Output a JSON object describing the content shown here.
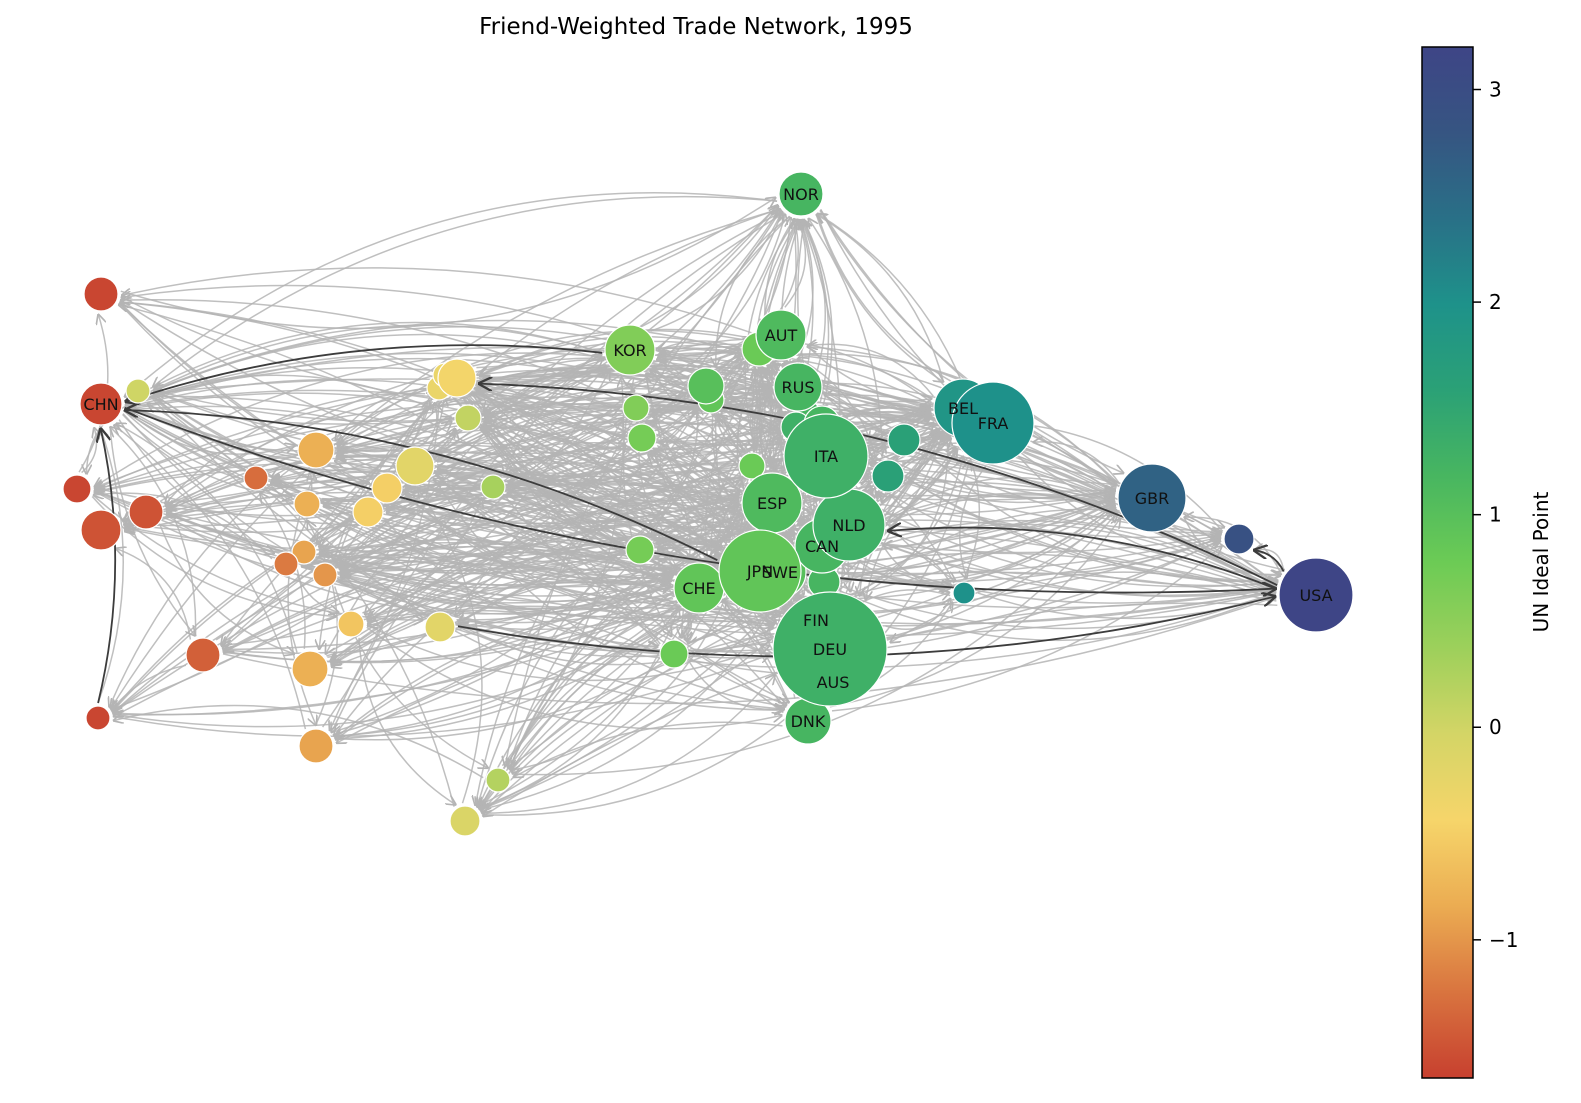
{
  "title": "Friend-Weighted Trade Network, 1995",
  "colorbar": {
    "label": "UN Ideal Point",
    "min": -1.65,
    "max": 3.2,
    "ticks": [
      {
        "value": 3,
        "label": "3"
      },
      {
        "value": 2,
        "label": "2"
      },
      {
        "value": 1,
        "label": "1"
      },
      {
        "value": 0,
        "label": "0"
      },
      {
        "value": -1,
        "label": "−1"
      }
    ],
    "stops": [
      "#c7402f",
      "#d9743f",
      "#ebac52",
      "#f6d56a",
      "#d4d566",
      "#9dd05b",
      "#6ccb55",
      "#48b660",
      "#2ba176",
      "#1e928a",
      "#297087",
      "#365582",
      "#3e4586"
    ]
  },
  "edge_colors": {
    "regular": "#b4b4b4",
    "highlight": "#3c3c3c"
  },
  "nodes": [
    {
      "id": "USA",
      "label": "USA",
      "ideal": 3.2,
      "size": 37
    },
    {
      "id": "GBR",
      "label": "GBR",
      "ideal": 2.6,
      "size": 34
    },
    {
      "id": "FRA",
      "label": "FRA",
      "ideal": 2.0,
      "size": 41
    },
    {
      "id": "BEL",
      "label": "BEL",
      "ideal": 1.9,
      "size": 29
    },
    {
      "id": "DEU",
      "label": "DEU",
      "ideal": 1.3,
      "size": 57
    },
    {
      "id": "AUS",
      "label": "AUS",
      "ideal": 1.3,
      "size": 0
    },
    {
      "id": "ITA",
      "label": "ITA",
      "ideal": 1.3,
      "size": 42
    },
    {
      "id": "NLD",
      "label": "NLD",
      "ideal": 1.3,
      "size": 36
    },
    {
      "id": "CAN",
      "label": "CAN",
      "ideal": 1.2,
      "size": 27
    },
    {
      "id": "SWE",
      "label": "SWE",
      "ideal": 1.0,
      "size": 26
    },
    {
      "id": "JPN",
      "label": "JPN",
      "ideal": 0.9,
      "size": 41
    },
    {
      "id": "FIN",
      "label": "FIN",
      "ideal": 1.2,
      "size": 22
    },
    {
      "id": "DNK",
      "label": "DNK",
      "ideal": 1.2,
      "size": 23
    },
    {
      "id": "ESP",
      "label": "ESP",
      "ideal": 1.1,
      "size": 30
    },
    {
      "id": "RUS",
      "label": "RUS",
      "ideal": 1.2,
      "size": 24
    },
    {
      "id": "AUT",
      "label": "AUT",
      "ideal": 1.1,
      "size": 25
    },
    {
      "id": "NOR",
      "label": "NOR",
      "ideal": 1.2,
      "size": 22
    },
    {
      "id": "CHE",
      "label": "CHE",
      "ideal": 0.9,
      "size": 25
    },
    {
      "id": "KOR",
      "label": "KOR",
      "ideal": 0.6,
      "size": 25
    },
    {
      "id": "CHN",
      "label": "CHN",
      "ideal": -1.6,
      "size": 21
    },
    {
      "id": "n1",
      "label": "",
      "ideal": 2.9,
      "size": 15
    },
    {
      "id": "n2",
      "label": "",
      "ideal": 2.0,
      "size": 11
    },
    {
      "id": "n3",
      "label": "",
      "ideal": 1.6,
      "size": 16
    },
    {
      "id": "n4",
      "label": "",
      "ideal": 1.6,
      "size": 16
    },
    {
      "id": "n5",
      "label": "",
      "ideal": 1.2,
      "size": 18
    },
    {
      "id": "n6",
      "label": "",
      "ideal": 1.2,
      "size": 16
    },
    {
      "id": "n7",
      "label": "",
      "ideal": 1.3,
      "size": 15
    },
    {
      "id": "n8",
      "label": "",
      "ideal": 1.2,
      "size": 12
    },
    {
      "id": "n9",
      "label": "",
      "ideal": 1.1,
      "size": 13
    },
    {
      "id": "n10",
      "label": "",
      "ideal": 1.1,
      "size": 14
    },
    {
      "id": "n11",
      "label": "",
      "ideal": 1.0,
      "size": 18
    },
    {
      "id": "n12",
      "label": "",
      "ideal": 1.0,
      "size": 17
    },
    {
      "id": "n13",
      "label": "",
      "ideal": 0.9,
      "size": 13
    },
    {
      "id": "n14",
      "label": "",
      "ideal": 0.8,
      "size": 13
    },
    {
      "id": "n15",
      "label": "",
      "ideal": 0.8,
      "size": 17
    },
    {
      "id": "n16",
      "label": "",
      "ideal": 0.7,
      "size": 14
    },
    {
      "id": "n17",
      "label": "",
      "ideal": 0.6,
      "size": 13
    },
    {
      "id": "n18",
      "label": "",
      "ideal": 0.7,
      "size": 14
    },
    {
      "id": "n19",
      "label": "",
      "ideal": 0.8,
      "size": 14
    },
    {
      "id": "n20",
      "label": "",
      "ideal": 0.3,
      "size": 12
    },
    {
      "id": "n21",
      "label": "",
      "ideal": 0.1,
      "size": 13
    },
    {
      "id": "n22",
      "label": "",
      "ideal": 0.2,
      "size": 12
    },
    {
      "id": "n23",
      "label": "",
      "ideal": -0.2,
      "size": 19
    },
    {
      "id": "n24",
      "label": "",
      "ideal": -0.3,
      "size": 12
    },
    {
      "id": "n25",
      "label": "",
      "ideal": -0.3,
      "size": 12
    },
    {
      "id": "n26",
      "label": "",
      "ideal": -0.4,
      "size": 19
    },
    {
      "id": "n27",
      "label": "",
      "ideal": -0.5,
      "size": 15
    },
    {
      "id": "n28",
      "label": "",
      "ideal": -0.5,
      "size": 15
    },
    {
      "id": "n29",
      "label": "",
      "ideal": -0.2,
      "size": 15
    },
    {
      "id": "n30",
      "label": "",
      "ideal": -0.6,
      "size": 13
    },
    {
      "id": "n31",
      "label": "",
      "ideal": -0.8,
      "size": 18
    },
    {
      "id": "n32",
      "label": "",
      "ideal": -0.8,
      "size": 13
    },
    {
      "id": "n33",
      "label": "",
      "ideal": -0.9,
      "size": 12
    },
    {
      "id": "n34",
      "label": "",
      "ideal": -1.0,
      "size": 12
    },
    {
      "id": "n35",
      "label": "",
      "ideal": -0.8,
      "size": 18
    },
    {
      "id": "n36",
      "label": "",
      "ideal": -0.9,
      "size": 17
    },
    {
      "id": "n37",
      "label": "",
      "ideal": -1.2,
      "size": 12
    },
    {
      "id": "n38",
      "label": "",
      "ideal": -1.3,
      "size": 12
    },
    {
      "id": "n39",
      "label": "",
      "ideal": -1.4,
      "size": 17
    },
    {
      "id": "n40",
      "label": "",
      "ideal": -1.5,
      "size": 17
    },
    {
      "id": "n41",
      "label": "",
      "ideal": -1.5,
      "size": 20
    },
    {
      "id": "n42",
      "label": "",
      "ideal": -1.6,
      "size": 14
    },
    {
      "id": "n43",
      "label": "",
      "ideal": -1.6,
      "size": 12
    },
    {
      "id": "n44",
      "label": "",
      "ideal": -0.1,
      "size": 15
    },
    {
      "id": "n45",
      "label": "",
      "ideal": 0.0,
      "size": 12
    }
  ],
  "highlight_edges": [
    [
      "KOR",
      "CHN"
    ],
    [
      "USA",
      "n26"
    ],
    [
      "USA",
      "NLD"
    ],
    [
      "CHN",
      "USA"
    ],
    [
      "JPN",
      "CHN"
    ],
    [
      "n43",
      "CHN"
    ],
    [
      "n29",
      "USA"
    ],
    [
      "USA",
      "n1"
    ]
  ]
}
